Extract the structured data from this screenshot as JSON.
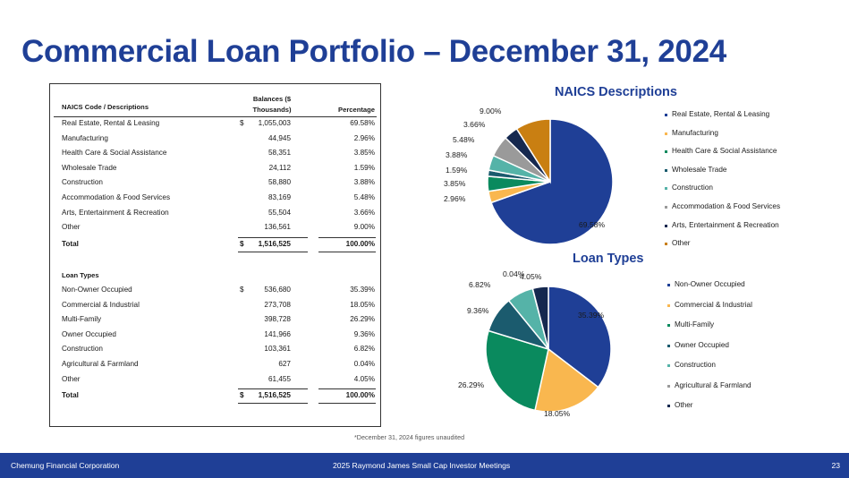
{
  "title": "Commercial Loan Portfolio – December 31, 2024",
  "naics_table": {
    "header_desc": "NAICS Code / Descriptions",
    "header_balances": "Balances ($ Thousands)",
    "header_pct": "Percentage",
    "rows": [
      {
        "label": "Real Estate, Rental & Leasing",
        "dollar": "$",
        "balance": "1,055,003",
        "pct": "69.58%"
      },
      {
        "label": "Manufacturing",
        "dollar": "",
        "balance": "44,945",
        "pct": "2.96%"
      },
      {
        "label": "Health Care & Social Assistance",
        "dollar": "",
        "balance": "58,351",
        "pct": "3.85%"
      },
      {
        "label": "Wholesale Trade",
        "dollar": "",
        "balance": "24,112",
        "pct": "1.59%"
      },
      {
        "label": "Construction",
        "dollar": "",
        "balance": "58,880",
        "pct": "3.88%"
      },
      {
        "label": "Accommodation & Food Services",
        "dollar": "",
        "balance": "83,169",
        "pct": "5.48%"
      },
      {
        "label": "Arts, Entertainment & Recreation",
        "dollar": "",
        "balance": "55,504",
        "pct": "3.66%"
      },
      {
        "label": "Other",
        "dollar": "",
        "balance": "136,561",
        "pct": "9.00%"
      }
    ],
    "total": {
      "label": "Total",
      "dollar": "$",
      "balance": "1,516,525",
      "pct": "100.00%"
    }
  },
  "loan_table": {
    "header": "Loan Types",
    "rows": [
      {
        "label": "Non-Owner Occupied",
        "dollar": "$",
        "balance": "536,680",
        "pct": "35.39%"
      },
      {
        "label": "Commercial & Industrial",
        "dollar": "",
        "balance": "273,708",
        "pct": "18.05%"
      },
      {
        "label": "Multi-Family",
        "dollar": "",
        "balance": "398,728",
        "pct": "26.29%"
      },
      {
        "label": "Owner Occupied",
        "dollar": "",
        "balance": "141,966",
        "pct": "9.36%"
      },
      {
        "label": "Construction",
        "dollar": "",
        "balance": "103,361",
        "pct": "6.82%"
      },
      {
        "label": "Agricultural & Farmland",
        "dollar": "",
        "balance": "627",
        "pct": "0.04%"
      },
      {
        "label": "Other",
        "dollar": "",
        "balance": "61,455",
        "pct": "4.05%"
      }
    ],
    "total": {
      "label": "Total",
      "dollar": "$",
      "balance": "1,516,525",
      "pct": "100.00%"
    }
  },
  "chart_data": [
    {
      "type": "pie",
      "title": "NAICS Descriptions",
      "legend_position": "right",
      "categories": [
        "Real Estate, Rental & Leasing",
        "Manufacturing",
        "Health Care & Social Assistance",
        "Wholesale Trade",
        "Construction",
        "Accommodation & Food Services",
        "Arts, Entertainment & Recreation",
        "Other"
      ],
      "values": [
        69.58,
        2.96,
        3.85,
        1.59,
        3.88,
        5.48,
        3.66,
        9.0
      ],
      "labels": [
        "69.58%",
        "2.96%",
        "3.85%",
        "1.59%",
        "3.88%",
        "5.48%",
        "3.66%",
        "9.00%"
      ],
      "colors": [
        "#1f3f96",
        "#f9b74f",
        "#0a8a5e",
        "#1b5b6e",
        "#55b3a8",
        "#9a9a9a",
        "#15284f",
        "#c97f12"
      ]
    },
    {
      "type": "pie",
      "title": "Loan Types",
      "legend_position": "right",
      "categories": [
        "Non-Owner Occupied",
        "Commercial & Industrial",
        "Multi-Family",
        "Owner Occupied",
        "Construction",
        "Agricultural & Farmland",
        "Other"
      ],
      "values": [
        35.39,
        18.05,
        26.29,
        9.36,
        6.82,
        0.04,
        4.05
      ],
      "labels": [
        "35.39%",
        "18.05%",
        "26.29%",
        "9.36%",
        "6.82%",
        "0.04%",
        "4.05%"
      ],
      "colors": [
        "#1f3f96",
        "#f9b74f",
        "#0a8a5e",
        "#1b5b6e",
        "#55b3a8",
        "#9a9a9a",
        "#15284f"
      ]
    }
  ],
  "footnote": "*December 31, 2024 figures unaudited",
  "footer": {
    "left": "Chemung Financial Corporation",
    "center": "2025 Raymond James Small Cap Investor Meetings",
    "page": "23"
  }
}
